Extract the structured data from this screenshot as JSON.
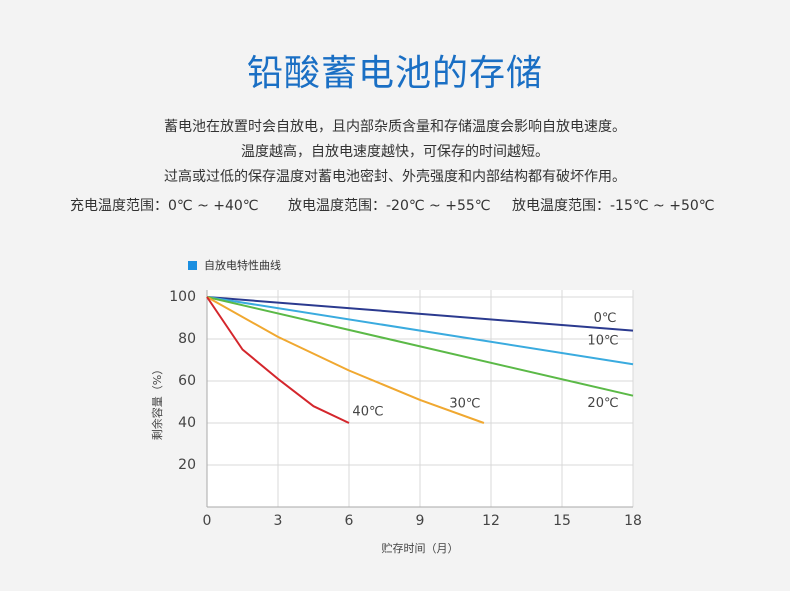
{
  "header": {
    "title": "铅酸蓄电池的存储",
    "lines": [
      "蓄电池在放置时会自放电，且内部杂质含量和存储温度会影响自放电速度。",
      "温度越高，自放电速度越快，可保存的时间越短。",
      "过高或过低的保存温度对蓄电池密封、外壳强度和内部结构都有破坏作用。"
    ],
    "ranges": [
      "充电温度范围：0℃ ~ +40℃",
      "放电温度范围：-20℃ ~ +55℃",
      "放电温度范围：-15℃ ~ +50℃"
    ]
  },
  "chart_data": {
    "type": "line",
    "title": "自放电特性曲线",
    "legend_color": "#1a8ee0",
    "x_label": "贮存时间（月）",
    "y_label": "剩余容量（%）",
    "xlim": [
      0,
      18
    ],
    "xticks": [
      0,
      3,
      6,
      9,
      12,
      15,
      18
    ],
    "ylim": [
      0,
      100
    ],
    "yticks": [
      20,
      40,
      60,
      80,
      100
    ],
    "grid": true,
    "series": [
      {
        "name": "0℃",
        "color": "#2b3a8f",
        "x": [
          0,
          18
        ],
        "values": [
          100,
          84
        ]
      },
      {
        "name": "10℃",
        "color": "#3aabdf",
        "x": [
          0,
          18
        ],
        "values": [
          100,
          68
        ]
      },
      {
        "name": "20℃",
        "color": "#5bb947",
        "x": [
          0,
          18
        ],
        "values": [
          100,
          53
        ]
      },
      {
        "name": "30℃",
        "color": "#f0a830",
        "x": [
          0,
          3,
          6,
          9,
          11.7
        ],
        "values": [
          100,
          81,
          65,
          51,
          40
        ]
      },
      {
        "name": "40℃",
        "color": "#d4262c",
        "x": [
          0,
          1.5,
          3,
          4.5,
          6
        ],
        "values": [
          100,
          75,
          61,
          48,
          40
        ]
      }
    ]
  }
}
